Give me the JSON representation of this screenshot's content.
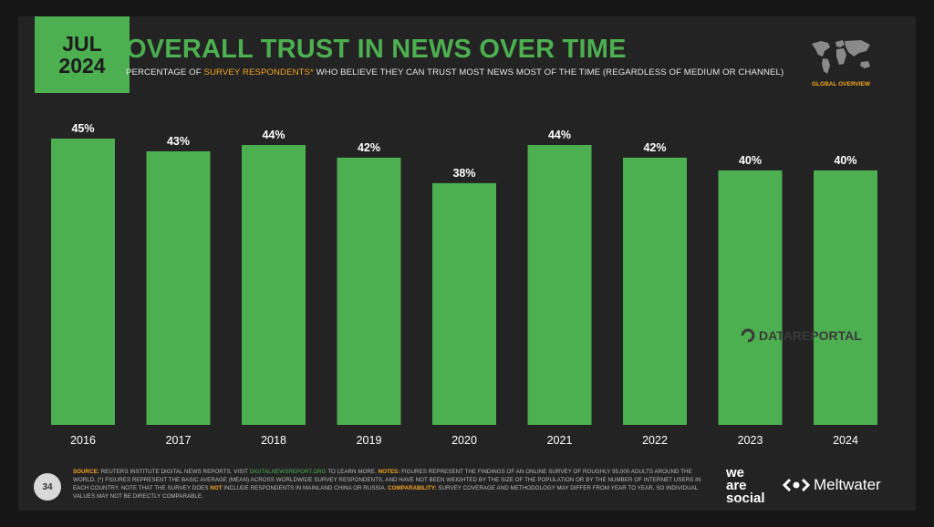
{
  "header": {
    "date_month": "JUL",
    "date_year": "2024",
    "title": "OVERALL TRUST IN NEWS OVER TIME",
    "subtitle_pre": "PERCENTAGE OF ",
    "subtitle_highlight": "SURVEY RESPONDENTS*",
    "subtitle_post": " WHO BELIEVE THEY CAN TRUST MOST NEWS MOST OF THE TIME (REGARDLESS OF MEDIUM OR CHANNEL)",
    "region_label": "GLOBAL OVERVIEW"
  },
  "watermark": "DATAREPORTAL",
  "chart_data": {
    "type": "bar",
    "title": "OVERALL TRUST IN NEWS OVER TIME",
    "xlabel": "",
    "ylabel": "",
    "categories": [
      "2016",
      "2017",
      "2018",
      "2019",
      "2020",
      "2021",
      "2022",
      "2023",
      "2024"
    ],
    "values": [
      45,
      43,
      44,
      42,
      38,
      44,
      42,
      40,
      40
    ],
    "value_labels": [
      "45%",
      "43%",
      "44%",
      "42%",
      "38%",
      "44%",
      "42%",
      "40%",
      "40%"
    ],
    "ylim": [
      0,
      45
    ],
    "grid": false,
    "bar_color": "#4caf50"
  },
  "footer": {
    "source_label": "SOURCE:",
    "source_text": " REUTERS INSTITUTE DIGITAL NEWS REPORTS. VISIT ",
    "source_link": "DIGITALNEWSREPORT.ORG",
    "source_post": " TO LEARN MORE. ",
    "notes_label": "NOTES:",
    "notes_text": " FIGURES REPRESENT THE FINDINGS OF AN ONLINE SURVEY OF ROUGHLY 95,000 ADULTS AROUND THE WORLD. (*) FIGURES REPRESENT THE BASIC AVERAGE (MEAN) ACROSS WORLDWIDE SURVEY RESPONDENTS, AND HAVE NOT BEEN WEIGHTED BY THE SIZE OF THE POPULATION OR BY THE NUMBER OF INTERNET USERS IN EACH COUNTRY. NOTE THAT THE SURVEY DOES ",
    "notes_not": "NOT",
    "notes_post": " INCLUDE RESPONDENTS IN MAINLAND CHINA OR RUSSIA. ",
    "comparability_label": "COMPARABILITY:",
    "comparability_text": " SURVEY COVERAGE AND METHODOLOGY MAY DIFFER FROM YEAR TO YEAR, SO INDIVIDUAL VALUES MAY NOT BE DIRECTLY COMPARABLE.",
    "page_number": "34",
    "logo_line1": "we",
    "logo_line2": "are",
    "logo_line3": "social",
    "partner_logo": "Meltwater"
  },
  "colors": {
    "accent": "#4caf50",
    "highlight": "#f5a623",
    "background": "#232323"
  }
}
